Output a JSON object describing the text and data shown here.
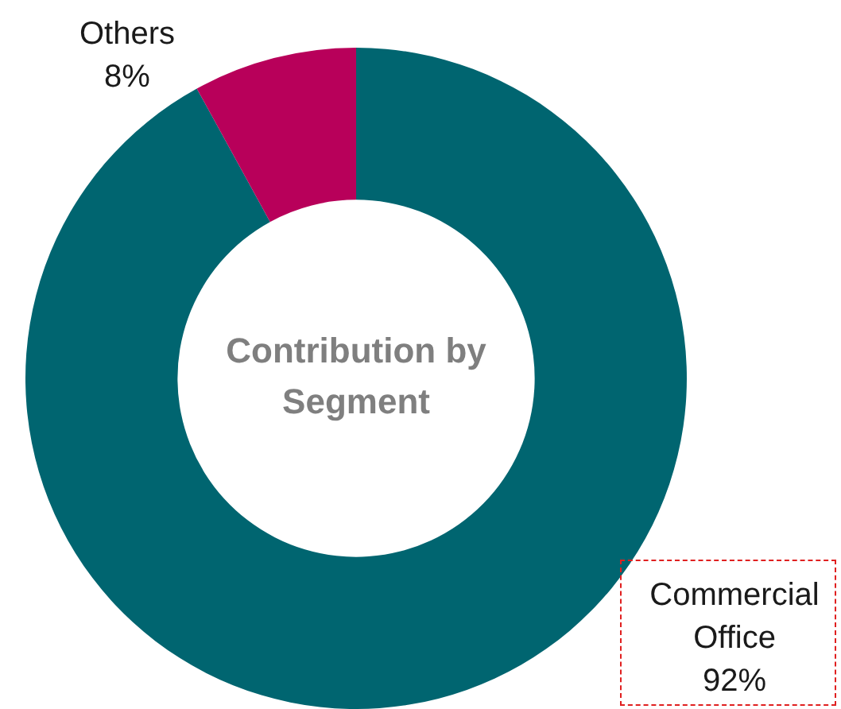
{
  "chart_data": {
    "type": "donut",
    "title": "Contribution by Segment",
    "categories": [
      "Commercial Office",
      "Others"
    ],
    "values": [
      92,
      8
    ],
    "colors": [
      "#006570",
      "#b8005a"
    ],
    "value_labels": [
      "92%",
      "8%"
    ],
    "legend": false
  }
}
